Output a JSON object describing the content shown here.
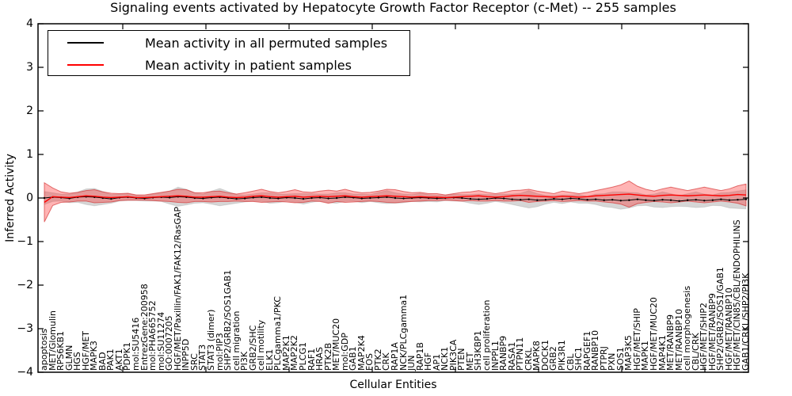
{
  "title": "Signaling events activated by Hepatocyte Growth Factor Receptor (c-Met) -- 255 samples",
  "chart_data": {
    "type": "line",
    "title": "Signaling events activated by Hepatocyte Growth Factor Receptor (c-Met) -- 255 samples",
    "xlabel": "Cellular Entities",
    "ylabel": "Inferred Activity",
    "ylim": [
      -4,
      4
    ],
    "ytick_labels": [
      "4",
      "3",
      "2",
      "1",
      "0",
      "−1",
      "−2",
      "−3",
      "−4"
    ],
    "grid": false,
    "legend_position": "upper left",
    "categories": [
      "apoptosis",
      "MET/Glomulin",
      "RPS6KB1",
      "GLMN",
      "HGS",
      "HGF/MET",
      "MAPK3",
      "BAD",
      "PAK1",
      "AKT1",
      "PDPK1",
      "mol:SU5416",
      "EntrezGene:200958",
      "mol:PHA665752",
      "mol:SU11274",
      "GO:0007205",
      "HGF/MET/Paxillin/FAK1/FAK12/RasGAP",
      "INPP5D",
      "SRC",
      "STAT3",
      "STAT3 (dimer)",
      "mol:PIP3",
      "SHP2/GRB2/SOS1GAB1",
      "cell migration",
      "PI3K",
      "GRB2/SHC",
      "cell motility",
      "ELK1",
      "PLCgamma1/PKC",
      "MAP2K1",
      "MAP2K2",
      "PLCG1",
      "RAF1",
      "HRAS",
      "PTK2B",
      "MET/MUC20",
      "mol:GDP",
      "GAB1",
      "MAP2K4",
      "FOS",
      "PTK2",
      "CRK",
      "RAP1A",
      "NCK/PLCgamma1",
      "JUN",
      "RAP1B",
      "HGF",
      "AP1",
      "NCK1",
      "PIK3CA",
      "PTEN",
      "MET",
      "SH3KBP1",
      "cell proliferation",
      "INPPL1",
      "RANBP9",
      "RASA1",
      "PTPN11",
      "CRKL",
      "MAPK8",
      "DOCK1",
      "GRB2",
      "PIK3R1",
      "CBL",
      "SHC1",
      "RAPGEF1",
      "RANBP10",
      "PTPRJ",
      "PXN",
      "SOS1",
      "MAP3K5",
      "HGF/MET/SHIP",
      "MAPK1",
      "HGF/MET/MUC20",
      "MAP4K1",
      "MET/RANBP9",
      "MET/RANBP10",
      "cell morphogenesis",
      "CBL/CRK",
      "HGF/MET/SHIP2",
      "HGF/MET/RANBP9",
      "SHP2/GRB2/SOS1/GAB1",
      "HGF/MET/RANBP10",
      "HGF/MET/CIN85/CBL/ENDOPHILINS",
      "GAB1/CRKL/SHP2/PI3K"
    ],
    "series": [
      {
        "name": "Mean activity in all permuted samples",
        "color": "#000000",
        "markers": true,
        "band_color": "rgba(0,0,0,0.16)",
        "band_edge": "rgba(0,0,0,0.10)",
        "values": [
          0,
          0.02,
          0.01,
          -0.01,
          0.02,
          0.03,
          0.02,
          0,
          -0.02,
          0.01,
          0.02,
          0,
          -0.01,
          0.01,
          0.02,
          0.01,
          0.03,
          0.02,
          0,
          -0.01,
          0.01,
          0.02,
          0,
          -0.02,
          -0.01,
          0.01,
          0.02,
          0,
          -0.01,
          0.01,
          0,
          -0.02,
          0,
          0.01,
          -0.01,
          0,
          0.02,
          0.01,
          -0.01,
          0,
          0.01,
          0.02,
          0,
          -0.01,
          0,
          0.01,
          0,
          -0.01,
          0,
          0.01,
          0,
          -0.02,
          -0.03,
          -0.02,
          0,
          -0.01,
          -0.03,
          -0.04,
          -0.03,
          -0.05,
          -0.04,
          -0.02,
          -0.03,
          -0.01,
          -0.02,
          -0.04,
          -0.03,
          -0.05,
          -0.04,
          -0.06,
          -0.05,
          -0.03,
          -0.05,
          -0.06,
          -0.04,
          -0.05,
          -0.07,
          -0.05,
          -0.04,
          -0.06,
          -0.05,
          -0.03,
          -0.05,
          -0.04,
          -0.03
        ],
        "band_halfwidth": [
          0.15,
          0.1,
          0.08,
          0.1,
          0.12,
          0.18,
          0.2,
          0.15,
          0.1,
          0.08,
          0.08,
          0.06,
          0.06,
          0.08,
          0.1,
          0.15,
          0.22,
          0.18,
          0.12,
          0.1,
          0.15,
          0.2,
          0.15,
          0.1,
          0.08,
          0.08,
          0.1,
          0.12,
          0.1,
          0.08,
          0.1,
          0.12,
          0.1,
          0.08,
          0.1,
          0.12,
          0.1,
          0.08,
          0.1,
          0.08,
          0.12,
          0.15,
          0.12,
          0.1,
          0.08,
          0.1,
          0.08,
          0.08,
          0.06,
          0.08,
          0.08,
          0.1,
          0.12,
          0.1,
          0.08,
          0.1,
          0.12,
          0.15,
          0.2,
          0.15,
          0.1,
          0.08,
          0.1,
          0.08,
          0.1,
          0.08,
          0.12,
          0.15,
          0.18,
          0.2,
          0.18,
          0.15,
          0.12,
          0.15,
          0.18,
          0.15,
          0.12,
          0.15,
          0.18,
          0.15,
          0.12,
          0.15,
          0.18,
          0.2,
          0.22
        ]
      },
      {
        "name": "Mean activity in patient samples",
        "color": "#ff0000",
        "markers": false,
        "band_color": "rgba(255,40,40,0.35)",
        "band_edge": "rgba(210,45,45,0.65)",
        "values": [
          -0.1,
          0.03,
          0.02,
          0.01,
          0.03,
          0.05,
          0.04,
          0.02,
          0.01,
          0.02,
          0.03,
          0.01,
          0.01,
          0.02,
          0.03,
          0.04,
          0.05,
          0.04,
          0.02,
          0.02,
          0.03,
          0.04,
          0.02,
          0.01,
          0.02,
          0.04,
          0.05,
          0.03,
          0.02,
          0.03,
          0.04,
          0.02,
          0.03,
          0.04,
          0.03,
          0.04,
          0.05,
          0.03,
          0.02,
          0.03,
          0.04,
          0.05,
          0.04,
          0.03,
          0.02,
          0.03,
          0.02,
          0.02,
          0.01,
          0.02,
          0.03,
          0.04,
          0.05,
          0.03,
          0.02,
          0.03,
          0.05,
          0.06,
          0.05,
          0.04,
          0.03,
          0.02,
          0.04,
          0.03,
          0.02,
          0.03,
          0.05,
          0.06,
          0.07,
          0.08,
          0.09,
          0.07,
          0.05,
          0.04,
          0.06,
          0.07,
          0.06,
          0.05,
          0.06,
          0.07,
          0.06,
          0.05,
          0.06,
          0.08,
          0.07
        ],
        "band_halfwidth": [
          0.45,
          0.2,
          0.12,
          0.1,
          0.1,
          0.12,
          0.15,
          0.12,
          0.1,
          0.08,
          0.08,
          0.06,
          0.06,
          0.08,
          0.1,
          0.12,
          0.15,
          0.15,
          0.1,
          0.1,
          0.12,
          0.12,
          0.1,
          0.08,
          0.1,
          0.12,
          0.15,
          0.12,
          0.1,
          0.12,
          0.15,
          0.12,
          0.1,
          0.12,
          0.15,
          0.12,
          0.15,
          0.12,
          0.1,
          0.1,
          0.12,
          0.15,
          0.15,
          0.12,
          0.1,
          0.1,
          0.08,
          0.08,
          0.06,
          0.08,
          0.1,
          0.1,
          0.12,
          0.1,
          0.08,
          0.1,
          0.12,
          0.12,
          0.15,
          0.12,
          0.1,
          0.08,
          0.12,
          0.1,
          0.08,
          0.1,
          0.12,
          0.15,
          0.18,
          0.22,
          0.3,
          0.2,
          0.15,
          0.12,
          0.15,
          0.18,
          0.15,
          0.12,
          0.15,
          0.18,
          0.15,
          0.12,
          0.15,
          0.2,
          0.25
        ]
      }
    ]
  }
}
